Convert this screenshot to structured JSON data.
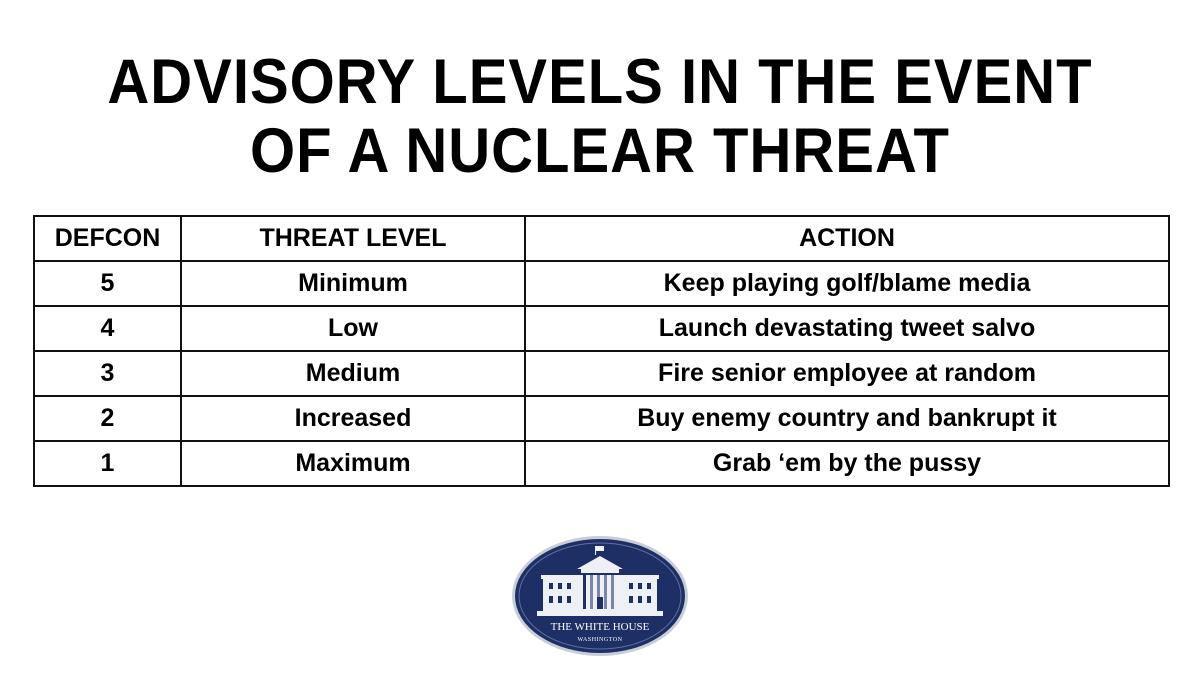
{
  "title": {
    "line1": "ADVISORY LEVELS IN THE EVENT",
    "line2": "OF A NUCLEAR THREAT"
  },
  "table": {
    "headers": {
      "defcon": "DEFCON",
      "threat_level": "THREAT LEVEL",
      "action": "ACTION"
    },
    "rows": [
      {
        "defcon": "5",
        "threat_level": "Minimum",
        "action": "Keep playing golf/blame media"
      },
      {
        "defcon": "4",
        "threat_level": "Low",
        "action": "Launch devastating tweet salvo"
      },
      {
        "defcon": "3",
        "threat_level": "Medium",
        "action": "Fire senior employee at random"
      },
      {
        "defcon": "2",
        "threat_level": "Increased",
        "action": "Buy enemy country and bankrupt it"
      },
      {
        "defcon": "1",
        "threat_level": "Maximum",
        "action": "Grab ‘em by the pussy"
      }
    ]
  },
  "seal": {
    "line1": "THE WHITE HOUSE",
    "line2": "WASHINGTON",
    "icon": "white-house-seal",
    "colors": {
      "navy": "#1e2f66",
      "rim": "#c9cdd8",
      "building": "#eef0f6"
    }
  }
}
